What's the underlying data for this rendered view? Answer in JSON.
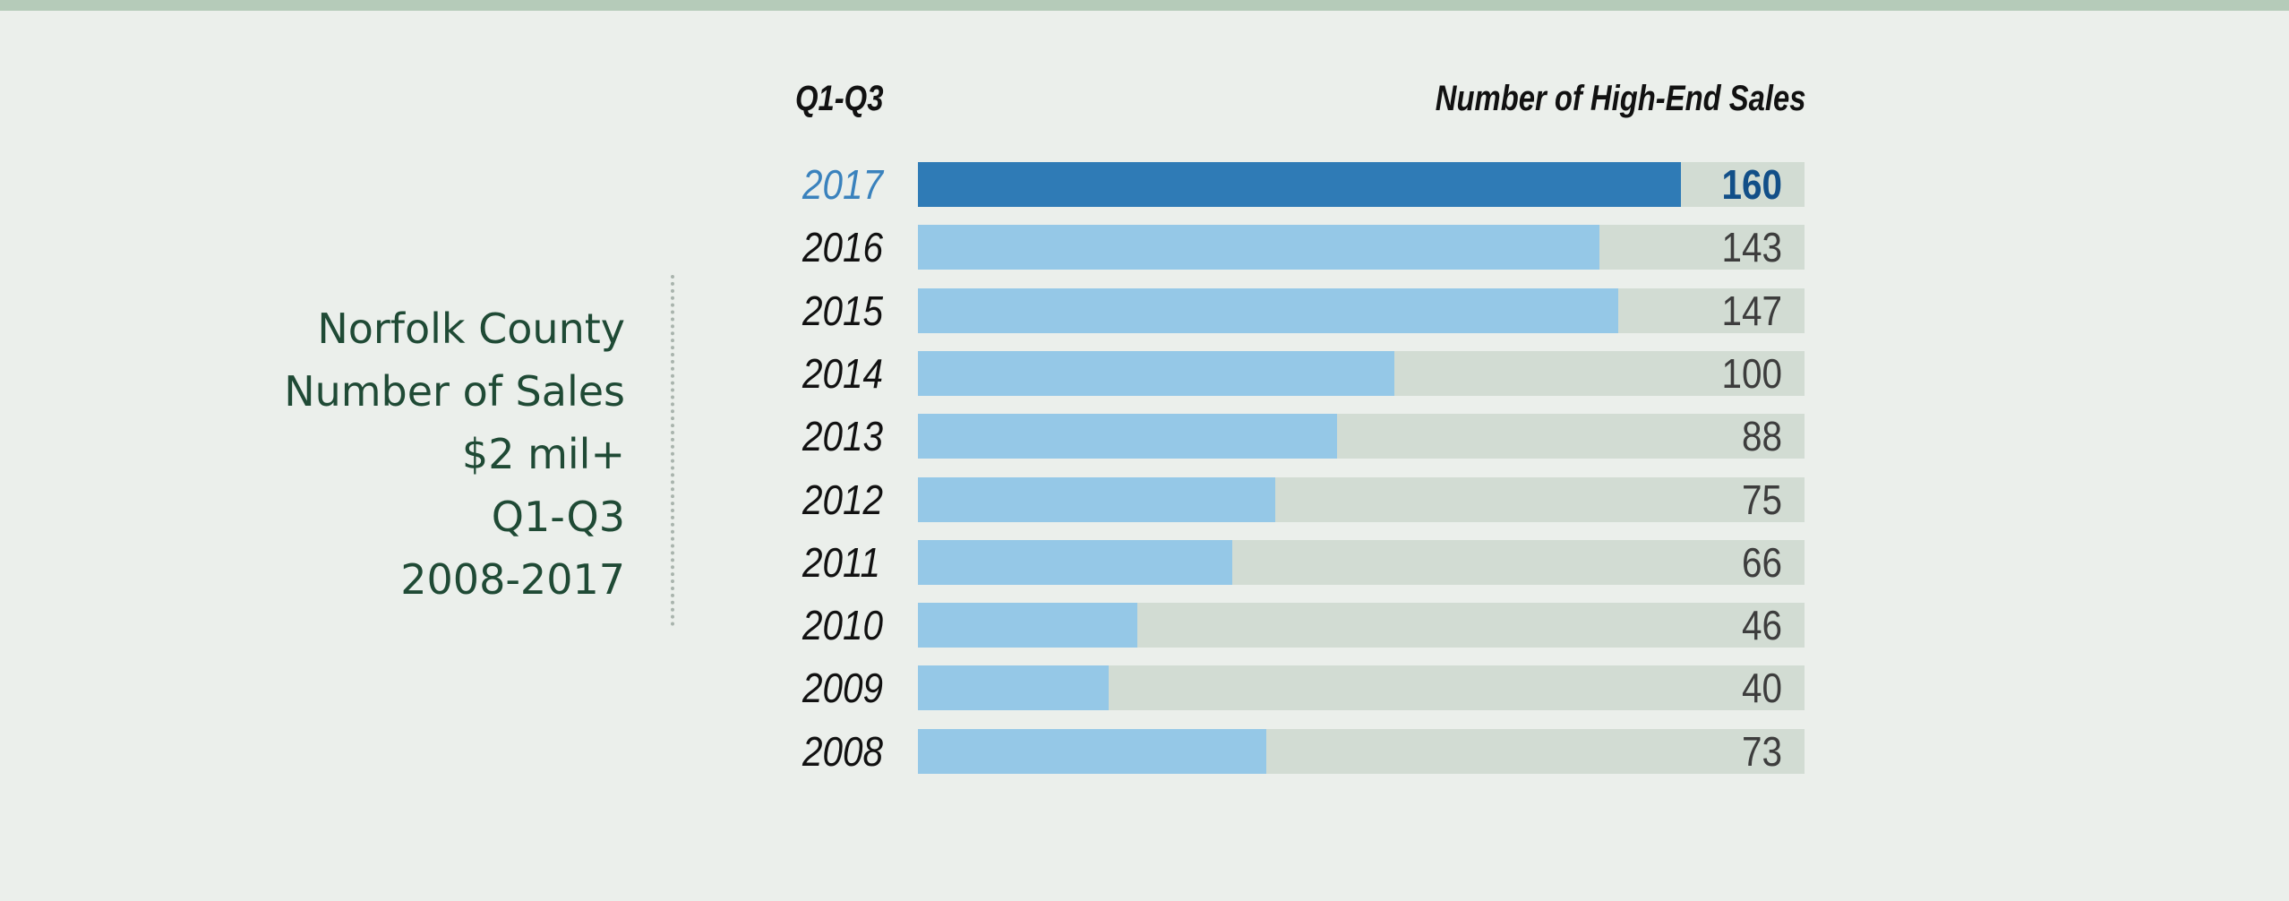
{
  "colors": {
    "background": "#ebefeb",
    "top_stripe": "#b5cbb9",
    "title_text": "#1f4a35",
    "highlight_bar": "#2f7bb6",
    "highlight_year": "#3a82bd",
    "highlight_value": "#124f88",
    "bar": "#95c8e7",
    "track": "#d2dcd3"
  },
  "side_title": {
    "line1": "Norfolk County",
    "line2": "Number of Sales",
    "line3": "$2 mil+",
    "line4": "Q1-Q3",
    "line5": "2008-2017"
  },
  "chart_data": {
    "type": "bar",
    "orientation": "horizontal",
    "row_header": "Q1-Q3",
    "value_header": "Number of High-End Sales",
    "categories": [
      "2017",
      "2016",
      "2015",
      "2014",
      "2013",
      "2012",
      "2011",
      "2010",
      "2009",
      "2008"
    ],
    "values": [
      160,
      143,
      147,
      100,
      88,
      75,
      66,
      46,
      40,
      73
    ],
    "highlight": "2017",
    "xlim": [
      0,
      186
    ],
    "grid": false
  }
}
